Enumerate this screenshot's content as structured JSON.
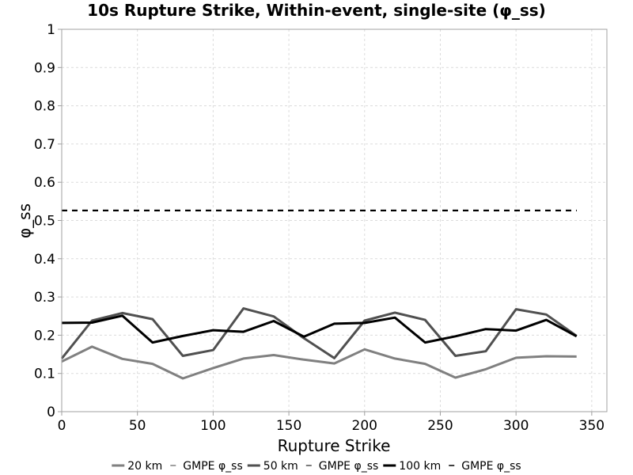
{
  "chart_data": {
    "type": "line",
    "title": "10s Rupture Strike, Within-event, single-site (φ_ss)",
    "xlabel": "Rupture Strike",
    "ylabel": "φ_ss",
    "xlim": [
      0,
      360
    ],
    "ylim": [
      0,
      1
    ],
    "xticks": [
      0,
      50,
      100,
      150,
      200,
      250,
      300,
      350
    ],
    "xtick_labels": [
      "0",
      "50",
      "100",
      "150",
      "200",
      "250",
      "300",
      "350"
    ],
    "yticks": [
      0,
      0.1,
      0.2,
      0.3,
      0.4,
      0.5,
      0.6,
      0.7,
      0.8,
      0.9,
      1
    ],
    "ytick_labels": [
      "0",
      "0.1",
      "0.2",
      "0.3",
      "0.4",
      "0.5",
      "0.6",
      "0.7",
      "0.8",
      "0.9",
      "1"
    ],
    "grid": true,
    "legend_position": "bottom",
    "series": [
      {
        "name": "20 km",
        "color": "#808080",
        "dash": false,
        "x": [
          0,
          20,
          40,
          60,
          80,
          100,
          120,
          140,
          160,
          180,
          200,
          220,
          240,
          260,
          280,
          300,
          320,
          340
        ],
        "y": [
          0.131,
          0.17,
          0.138,
          0.125,
          0.087,
          0.114,
          0.139,
          0.148,
          0.136,
          0.126,
          0.163,
          0.139,
          0.125,
          0.089,
          0.111,
          0.141,
          0.145,
          0.144
        ]
      },
      {
        "name": "GMPE φ_ss",
        "color": "#808080",
        "dash": true,
        "x": [
          0,
          340
        ],
        "y": [
          0.526,
          0.526
        ]
      },
      {
        "name": "50 km",
        "color": "#505050",
        "dash": false,
        "x": [
          0,
          20,
          40,
          60,
          80,
          100,
          120,
          140,
          160,
          180,
          200,
          220,
          240,
          260,
          280,
          300,
          320,
          340
        ],
        "y": [
          0.139,
          0.238,
          0.258,
          0.242,
          0.146,
          0.161,
          0.27,
          0.249,
          0.192,
          0.14,
          0.238,
          0.259,
          0.24,
          0.146,
          0.158,
          0.268,
          0.254,
          0.198
        ]
      },
      {
        "name": "GMPE φ_ss",
        "color": "#505050",
        "dash": true,
        "x": [
          0,
          340
        ],
        "y": [
          0.526,
          0.526
        ]
      },
      {
        "name": "100 km",
        "color": "#000000",
        "dash": false,
        "x": [
          0,
          20,
          40,
          60,
          80,
          100,
          120,
          140,
          160,
          180,
          200,
          220,
          240,
          260,
          280,
          300,
          320,
          340
        ],
        "y": [
          0.232,
          0.233,
          0.251,
          0.181,
          0.198,
          0.213,
          0.209,
          0.237,
          0.196,
          0.23,
          0.232,
          0.246,
          0.181,
          0.197,
          0.216,
          0.212,
          0.24,
          0.197
        ]
      },
      {
        "name": "GMPE φ_ss",
        "color": "#000000",
        "dash": true,
        "x": [
          0,
          340
        ],
        "y": [
          0.526,
          0.526
        ]
      }
    ]
  }
}
